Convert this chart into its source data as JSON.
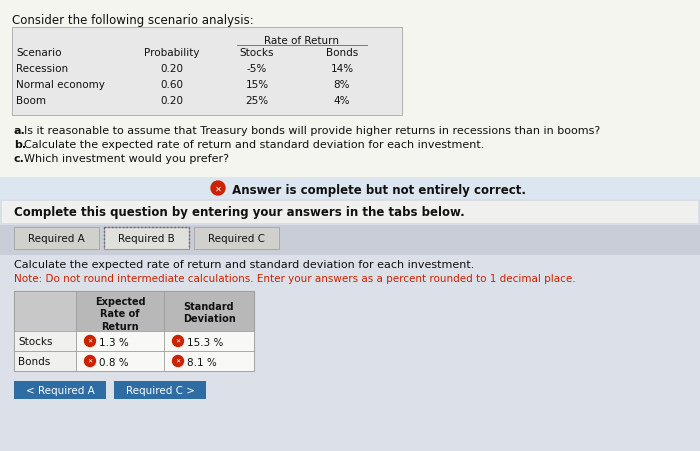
{
  "title": "Consider the following scenario analysis:",
  "table1_rows": [
    [
      "Recession",
      "0.20",
      "-5%",
      "14%"
    ],
    [
      "Normal economy",
      "0.60",
      "15%",
      "8%"
    ],
    [
      "Boom",
      "0.20",
      "25%",
      "4%"
    ]
  ],
  "questions": [
    [
      "a",
      "Is it reasonable to assume that Treasury bonds will provide higher returns in recessions than in booms?"
    ],
    [
      "b",
      "Calculate the expected rate of return and standard deviation for each investment."
    ],
    [
      "c",
      "Which investment would you prefer?"
    ]
  ],
  "answer_banner": "Answer is complete but not entirely correct.",
  "complete_text": "Complete this question by entering your answers in the tabs below.",
  "tabs": [
    "Required A",
    "Required B",
    "Required C"
  ],
  "active_tab": 1,
  "instruction_line1": "Calculate the expected rate of return and standard deviation for each investment.",
  "instruction_line2": "Note: Do not round intermediate calculations. Enter your answers as a percent rounded to 1 decimal place.",
  "table2_rows": [
    [
      "Stocks",
      "1.3",
      "15.3"
    ],
    [
      "Bonds",
      "0.8",
      "8.1"
    ]
  ],
  "bottom_buttons": [
    "< Required A",
    "Required C >"
  ],
  "bg_light": "#e8e8e8",
  "bg_white": "#f5f5f0",
  "bg_section": "#dce6f0",
  "tab_active_bg": "#d8d8d8",
  "tab_dotted_bg": "#cccccc",
  "error_red": "#cc2200",
  "note_red": "#cc2200",
  "btn_blue": "#2e6da4",
  "table_gray": "#c8c8c8",
  "table_header_gray": "#b8b8b8",
  "border_gray": "#999999"
}
